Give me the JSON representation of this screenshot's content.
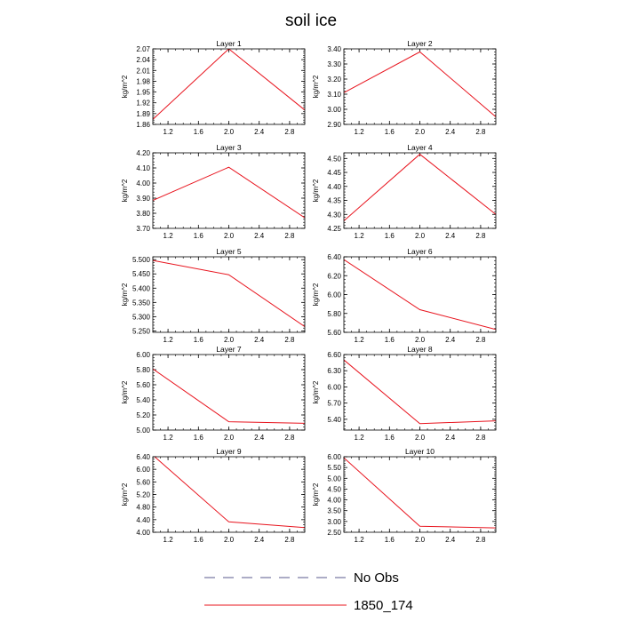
{
  "title": "soil ice",
  "colors": {
    "series": "#e8141e",
    "obs": "#5a5a8c",
    "axis": "#000000"
  },
  "legend": [
    {
      "label": "No Obs",
      "style": "dashed"
    },
    {
      "label": "1850_174",
      "style": "solid"
    }
  ],
  "chart_data": [
    {
      "type": "line",
      "title": "Layer 1",
      "ylabel": "kg/m^2",
      "xlim": [
        1.0,
        3.0
      ],
      "xticks": [
        "1.2",
        "1.6",
        "2.0",
        "2.4",
        "2.8"
      ],
      "ylim": [
        1.86,
        2.07
      ],
      "yticks": [
        "1.86",
        "1.89",
        "1.92",
        "1.95",
        "1.98",
        "2.01",
        "2.04",
        "2.07"
      ],
      "series": [
        {
          "x": [
            1,
            2,
            3
          ],
          "y": [
            1.874,
            2.07,
            1.9
          ]
        }
      ]
    },
    {
      "type": "line",
      "title": "Layer 2",
      "ylabel": "kg/m^2",
      "xlim": [
        1.0,
        3.0
      ],
      "xticks": [
        "1.2",
        "1.6",
        "2.0",
        "2.4",
        "2.8"
      ],
      "ylim": [
        2.9,
        3.4
      ],
      "yticks": [
        "2.90",
        "3.00",
        "3.10",
        "3.20",
        "3.30",
        "3.40"
      ],
      "series": [
        {
          "x": [
            1,
            2,
            3
          ],
          "y": [
            3.11,
            3.38,
            2.95
          ]
        }
      ]
    },
    {
      "type": "line",
      "title": "Layer 3",
      "ylabel": "kg/m^2",
      "xlim": [
        1.0,
        3.0
      ],
      "xticks": [
        "1.2",
        "1.6",
        "2.0",
        "2.4",
        "2.8"
      ],
      "ylim": [
        3.7,
        4.2
      ],
      "yticks": [
        "3.70",
        "3.80",
        "3.90",
        "4.00",
        "4.10",
        "4.20"
      ],
      "series": [
        {
          "x": [
            1,
            2,
            3
          ],
          "y": [
            3.885,
            4.105,
            3.77
          ]
        }
      ]
    },
    {
      "type": "line",
      "title": "Layer 4",
      "ylabel": "kg/m^2",
      "xlim": [
        1.0,
        3.0
      ],
      "xticks": [
        "1.2",
        "1.6",
        "2.0",
        "2.4",
        "2.8"
      ],
      "ylim": [
        4.25,
        4.52
      ],
      "yticks": [
        "4.25",
        "4.30",
        "4.35",
        "4.40",
        "4.45",
        "4.50"
      ],
      "series": [
        {
          "x": [
            1,
            2,
            3
          ],
          "y": [
            4.277,
            4.515,
            4.3
          ]
        }
      ]
    },
    {
      "type": "line",
      "title": "Layer 5",
      "ylabel": "kg/m^2",
      "xlim": [
        1.0,
        3.0
      ],
      "xticks": [
        "1.2",
        "1.6",
        "2.0",
        "2.4",
        "2.8"
      ],
      "ylim": [
        5.245,
        5.51
      ],
      "yticks": [
        "5.250",
        "5.300",
        "5.350",
        "5.400",
        "5.450",
        "5.500"
      ],
      "series": [
        {
          "x": [
            1,
            2,
            3
          ],
          "y": [
            5.497,
            5.447,
            5.265
          ]
        }
      ]
    },
    {
      "type": "line",
      "title": "Layer 6",
      "ylabel": "kg/m^2",
      "xlim": [
        1.0,
        3.0
      ],
      "xticks": [
        "1.2",
        "1.6",
        "2.0",
        "2.4",
        "2.8"
      ],
      "ylim": [
        5.6,
        6.4
      ],
      "yticks": [
        "5.60",
        "5.80",
        "6.00",
        "6.20",
        "6.40"
      ],
      "series": [
        {
          "x": [
            1,
            2,
            3
          ],
          "y": [
            6.37,
            5.84,
            5.63
          ]
        }
      ]
    },
    {
      "type": "line",
      "title": "Layer 7",
      "ylabel": "kg/m^2",
      "xlim": [
        1.0,
        3.0
      ],
      "xticks": [
        "1.2",
        "1.6",
        "2.0",
        "2.4",
        "2.8"
      ],
      "ylim": [
        5.0,
        6.0
      ],
      "yticks": [
        "5.00",
        "5.20",
        "5.40",
        "5.60",
        "5.80",
        "6.00"
      ],
      "series": [
        {
          "x": [
            1,
            2,
            3
          ],
          "y": [
            5.81,
            5.11,
            5.09
          ]
        }
      ]
    },
    {
      "type": "line",
      "title": "Layer 8",
      "ylabel": "kg/m^2",
      "xlim": [
        1.0,
        3.0
      ],
      "xticks": [
        "1.2",
        "1.6",
        "2.0",
        "2.4",
        "2.8"
      ],
      "ylim": [
        5.2,
        6.6
      ],
      "yticks": [
        "5.40",
        "5.70",
        "6.00",
        "6.30",
        "6.60"
      ],
      "series": [
        {
          "x": [
            1,
            2,
            3
          ],
          "y": [
            6.5,
            5.32,
            5.37
          ]
        }
      ]
    },
    {
      "type": "line",
      "title": "Layer 9",
      "ylabel": "kg/m^2",
      "xlim": [
        1.0,
        3.0
      ],
      "xticks": [
        "1.2",
        "1.6",
        "2.0",
        "2.4",
        "2.8"
      ],
      "ylim": [
        4.0,
        6.4
      ],
      "yticks": [
        "4.00",
        "4.40",
        "4.80",
        "5.20",
        "5.60",
        "6.00",
        "6.40"
      ],
      "series": [
        {
          "x": [
            1,
            2,
            3
          ],
          "y": [
            6.45,
            4.33,
            4.15
          ]
        }
      ]
    },
    {
      "type": "line",
      "title": "Layer 10",
      "ylabel": "kg/m^2",
      "xlim": [
        1.0,
        3.0
      ],
      "xticks": [
        "1.2",
        "1.6",
        "2.0",
        "2.4",
        "2.8"
      ],
      "ylim": [
        2.5,
        6.0
      ],
      "yticks": [
        "2.50",
        "3.00",
        "3.50",
        "4.00",
        "4.50",
        "5.00",
        "5.50",
        "6.00"
      ],
      "series": [
        {
          "x": [
            1,
            2,
            3
          ],
          "y": [
            5.95,
            2.78,
            2.7
          ]
        }
      ]
    }
  ]
}
